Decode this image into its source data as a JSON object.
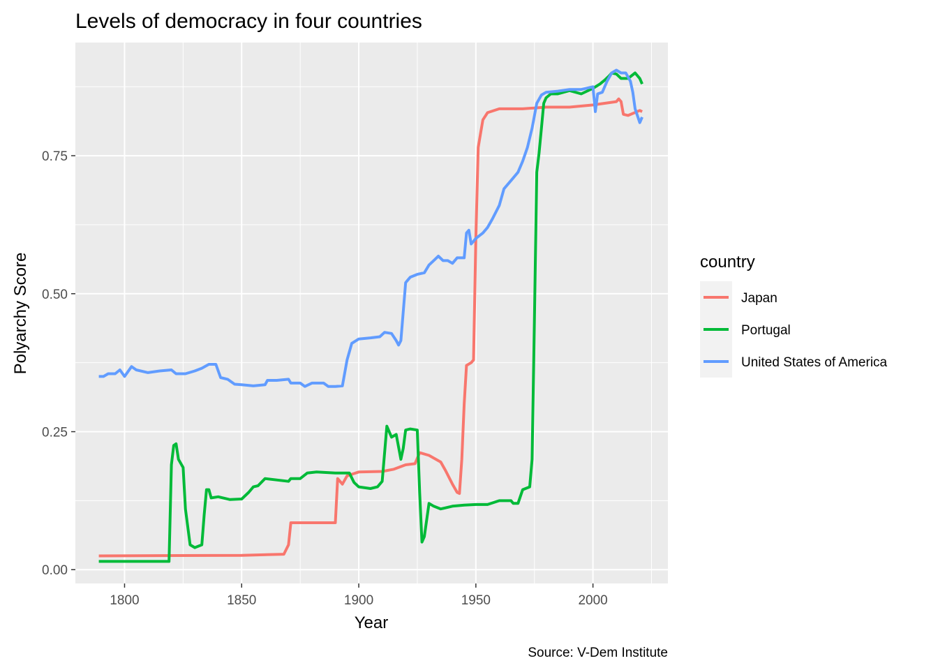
{
  "chart_data": {
    "type": "line",
    "title": "Levels of democracy in four countries",
    "xlabel": "Year",
    "ylabel": "Polyarchy Score",
    "caption": "Source: V-Dem Institute",
    "legend_title": "country",
    "legend_position": "right",
    "grid": true,
    "xlim": [
      1779,
      2032
    ],
    "ylim": [
      -0.025,
      0.955
    ],
    "x_ticks": [
      1800,
      1850,
      1900,
      1950,
      2000
    ],
    "y_ticks": [
      0.0,
      0.25,
      0.5,
      0.75
    ],
    "x_tick_labels": [
      "1800",
      "1850",
      "1900",
      "1950",
      "2000"
    ],
    "y_tick_labels": [
      "0.00",
      "0.25",
      "0.50",
      "0.75"
    ],
    "series": [
      {
        "name": "Japan",
        "color": "#F8766D",
        "points": [
          [
            1789,
            0.025
          ],
          [
            1850,
            0.026
          ],
          [
            1868,
            0.028
          ],
          [
            1870,
            0.045
          ],
          [
            1871,
            0.085
          ],
          [
            1890,
            0.085
          ],
          [
            1891,
            0.165
          ],
          [
            1893,
            0.155
          ],
          [
            1895,
            0.17
          ],
          [
            1900,
            0.177
          ],
          [
            1910,
            0.178
          ],
          [
            1915,
            0.182
          ],
          [
            1920,
            0.19
          ],
          [
            1924,
            0.192
          ],
          [
            1926,
            0.212
          ],
          [
            1930,
            0.207
          ],
          [
            1935,
            0.195
          ],
          [
            1937,
            0.18
          ],
          [
            1940,
            0.155
          ],
          [
            1942,
            0.14
          ],
          [
            1943,
            0.138
          ],
          [
            1944,
            0.2
          ],
          [
            1945,
            0.3
          ],
          [
            1946,
            0.37
          ],
          [
            1948,
            0.375
          ],
          [
            1949,
            0.38
          ],
          [
            1950,
            0.6
          ],
          [
            1951,
            0.765
          ],
          [
            1952,
            0.79
          ],
          [
            1953,
            0.815
          ],
          [
            1955,
            0.828
          ],
          [
            1960,
            0.835
          ],
          [
            1970,
            0.835
          ],
          [
            1980,
            0.838
          ],
          [
            1990,
            0.838
          ],
          [
            2000,
            0.842
          ],
          [
            2010,
            0.848
          ],
          [
            2011,
            0.853
          ],
          [
            2012,
            0.848
          ],
          [
            2013,
            0.825
          ],
          [
            2015,
            0.823
          ],
          [
            2020,
            0.832
          ],
          [
            2021,
            0.83
          ]
        ]
      },
      {
        "name": "Portugal",
        "color": "#00BA38",
        "points": [
          [
            1789,
            0.015
          ],
          [
            1819,
            0.015
          ],
          [
            1820,
            0.19
          ],
          [
            1821,
            0.225
          ],
          [
            1822,
            0.228
          ],
          [
            1823,
            0.2
          ],
          [
            1825,
            0.185
          ],
          [
            1826,
            0.11
          ],
          [
            1828,
            0.045
          ],
          [
            1830,
            0.04
          ],
          [
            1833,
            0.045
          ],
          [
            1834,
            0.1
          ],
          [
            1835,
            0.145
          ],
          [
            1836,
            0.145
          ],
          [
            1837,
            0.13
          ],
          [
            1840,
            0.132
          ],
          [
            1845,
            0.127
          ],
          [
            1850,
            0.128
          ],
          [
            1853,
            0.14
          ],
          [
            1855,
            0.15
          ],
          [
            1857,
            0.152
          ],
          [
            1860,
            0.165
          ],
          [
            1870,
            0.16
          ],
          [
            1871,
            0.165
          ],
          [
            1875,
            0.165
          ],
          [
            1878,
            0.175
          ],
          [
            1882,
            0.177
          ],
          [
            1890,
            0.175
          ],
          [
            1896,
            0.175
          ],
          [
            1898,
            0.158
          ],
          [
            1900,
            0.15
          ],
          [
            1905,
            0.147
          ],
          [
            1908,
            0.15
          ],
          [
            1910,
            0.16
          ],
          [
            1912,
            0.26
          ],
          [
            1914,
            0.24
          ],
          [
            1916,
            0.245
          ],
          [
            1918,
            0.2
          ],
          [
            1919,
            0.22
          ],
          [
            1920,
            0.253
          ],
          [
            1922,
            0.255
          ],
          [
            1925,
            0.253
          ],
          [
            1926,
            0.14
          ],
          [
            1927,
            0.05
          ],
          [
            1928,
            0.06
          ],
          [
            1930,
            0.12
          ],
          [
            1932,
            0.115
          ],
          [
            1935,
            0.11
          ],
          [
            1940,
            0.115
          ],
          [
            1945,
            0.117
          ],
          [
            1950,
            0.118
          ],
          [
            1955,
            0.118
          ],
          [
            1960,
            0.125
          ],
          [
            1965,
            0.125
          ],
          [
            1966,
            0.12
          ],
          [
            1968,
            0.12
          ],
          [
            1970,
            0.145
          ],
          [
            1973,
            0.15
          ],
          [
            1974,
            0.2
          ],
          [
            1975,
            0.45
          ],
          [
            1976,
            0.72
          ],
          [
            1977,
            0.755
          ],
          [
            1978,
            0.8
          ],
          [
            1979,
            0.845
          ],
          [
            1980,
            0.855
          ],
          [
            1982,
            0.862
          ],
          [
            1985,
            0.862
          ],
          [
            1990,
            0.868
          ],
          [
            1995,
            0.862
          ],
          [
            2000,
            0.872
          ],
          [
            2003,
            0.88
          ],
          [
            2005,
            0.887
          ],
          [
            2007,
            0.895
          ],
          [
            2008,
            0.9
          ],
          [
            2010,
            0.898
          ],
          [
            2012,
            0.89
          ],
          [
            2015,
            0.89
          ],
          [
            2018,
            0.9
          ],
          [
            2020,
            0.89
          ],
          [
            2021,
            0.88
          ]
        ]
      },
      {
        "name": "United States of America",
        "color": "#619CFF",
        "points": [
          [
            1789,
            0.35
          ],
          [
            1791,
            0.35
          ],
          [
            1793,
            0.355
          ],
          [
            1796,
            0.355
          ],
          [
            1798,
            0.362
          ],
          [
            1800,
            0.35
          ],
          [
            1803,
            0.368
          ],
          [
            1805,
            0.362
          ],
          [
            1810,
            0.357
          ],
          [
            1815,
            0.36
          ],
          [
            1820,
            0.362
          ],
          [
            1822,
            0.355
          ],
          [
            1826,
            0.355
          ],
          [
            1830,
            0.36
          ],
          [
            1833,
            0.365
          ],
          [
            1836,
            0.372
          ],
          [
            1839,
            0.372
          ],
          [
            1841,
            0.348
          ],
          [
            1844,
            0.345
          ],
          [
            1847,
            0.336
          ],
          [
            1850,
            0.335
          ],
          [
            1855,
            0.333
          ],
          [
            1860,
            0.335
          ],
          [
            1861,
            0.343
          ],
          [
            1865,
            0.343
          ],
          [
            1870,
            0.345
          ],
          [
            1871,
            0.338
          ],
          [
            1875,
            0.338
          ],
          [
            1877,
            0.332
          ],
          [
            1880,
            0.338
          ],
          [
            1885,
            0.338
          ],
          [
            1887,
            0.332
          ],
          [
            1890,
            0.332
          ],
          [
            1893,
            0.333
          ],
          [
            1895,
            0.38
          ],
          [
            1897,
            0.41
          ],
          [
            1900,
            0.418
          ],
          [
            1905,
            0.42
          ],
          [
            1909,
            0.422
          ],
          [
            1911,
            0.43
          ],
          [
            1914,
            0.428
          ],
          [
            1916,
            0.415
          ],
          [
            1917,
            0.407
          ],
          [
            1918,
            0.415
          ],
          [
            1920,
            0.52
          ],
          [
            1921,
            0.525
          ],
          [
            1922,
            0.53
          ],
          [
            1925,
            0.535
          ],
          [
            1928,
            0.538
          ],
          [
            1930,
            0.552
          ],
          [
            1932,
            0.56
          ],
          [
            1934,
            0.568
          ],
          [
            1936,
            0.56
          ],
          [
            1938,
            0.56
          ],
          [
            1940,
            0.555
          ],
          [
            1942,
            0.565
          ],
          [
            1945,
            0.565
          ],
          [
            1946,
            0.61
          ],
          [
            1947,
            0.615
          ],
          [
            1948,
            0.59
          ],
          [
            1949,
            0.595
          ],
          [
            1950,
            0.6
          ],
          [
            1953,
            0.61
          ],
          [
            1955,
            0.62
          ],
          [
            1957,
            0.635
          ],
          [
            1960,
            0.66
          ],
          [
            1962,
            0.69
          ],
          [
            1964,
            0.7
          ],
          [
            1966,
            0.71
          ],
          [
            1968,
            0.72
          ],
          [
            1970,
            0.74
          ],
          [
            1972,
            0.765
          ],
          [
            1974,
            0.8
          ],
          [
            1976,
            0.845
          ],
          [
            1978,
            0.86
          ],
          [
            1980,
            0.865
          ],
          [
            1985,
            0.867
          ],
          [
            1990,
            0.87
          ],
          [
            1995,
            0.87
          ],
          [
            2000,
            0.875
          ],
          [
            2001,
            0.83
          ],
          [
            2002,
            0.862
          ],
          [
            2004,
            0.865
          ],
          [
            2006,
            0.885
          ],
          [
            2008,
            0.9
          ],
          [
            2010,
            0.905
          ],
          [
            2012,
            0.9
          ],
          [
            2014,
            0.9
          ],
          [
            2016,
            0.885
          ],
          [
            2017,
            0.865
          ],
          [
            2018,
            0.835
          ],
          [
            2020,
            0.81
          ],
          [
            2021,
            0.82
          ]
        ]
      }
    ]
  }
}
